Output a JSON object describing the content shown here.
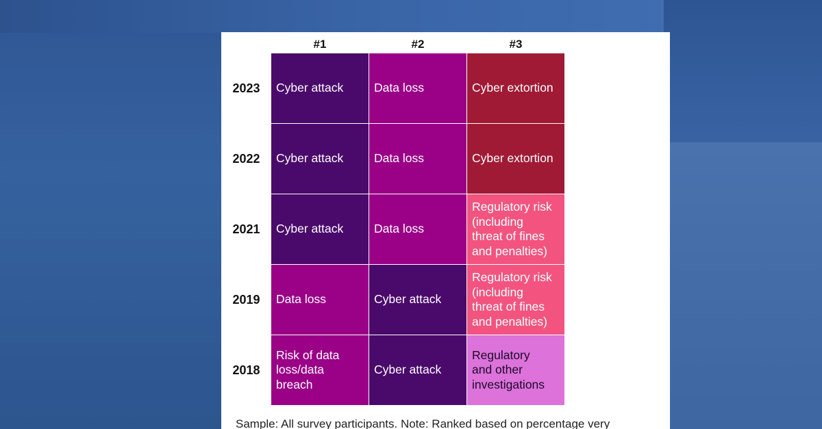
{
  "chart_data": {
    "type": "table",
    "columns": [
      "#1",
      "#2",
      "#3"
    ],
    "rows": [
      {
        "year": "2023",
        "cells": [
          "Cyber attack",
          "Data loss",
          "Cyber extortion"
        ]
      },
      {
        "year": "2022",
        "cells": [
          "Cyber attack",
          "Data loss",
          "Cyber extortion"
        ]
      },
      {
        "year": "2021",
        "cells": [
          "Cyber attack",
          "Data loss",
          "Regulatory risk (including threat of fines and penalties)"
        ]
      },
      {
        "year": "2019",
        "cells": [
          "Data loss",
          "Cyber attack",
          "Regulatory risk (including threat of fines and penalties)"
        ]
      },
      {
        "year": "2018",
        "cells": [
          "Risk of data loss/data breach",
          "Cyber attack",
          "Regulatory and other investigations"
        ]
      }
    ],
    "colors": {
      "Cyber attack": "#4a0a6b",
      "Data loss": "#9a0187",
      "Cyber extortion": "#a01a35",
      "Regulatory risk (including threat of fines and penalties)": "#f2547f",
      "Regulatory and other investigations": "#dc72da",
      "Risk of data loss/data breach": "#9a0187"
    }
  },
  "note": "Sample: All survey participants. Note: Ranked based on percentage very"
}
